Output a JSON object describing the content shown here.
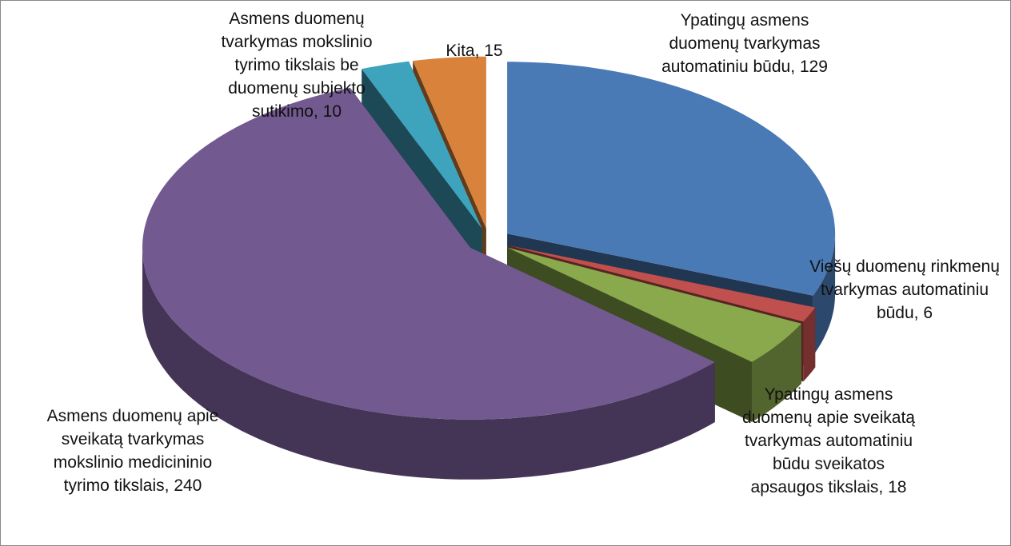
{
  "chart_data": {
    "type": "pie3d",
    "values": [
      129,
      6,
      18,
      240,
      10,
      15
    ],
    "value_labels": [
      "Ypatingų asmens duomenų tvarkymas automatiniu būdu, 129",
      "Viešų duomenų rinkmenų tvarkymas automatiniu būdu, 6",
      "Ypatingų asmens duomenų apie sveikatą tvarkymas automatiniu būdu sveikatos apsaugos tikslais, 18",
      "Asmens duomenų apie sveikatą tvarkymas mokslinio medicininio tyrimo tikslais, 240",
      "Asmens duomenų tvarkymas mokslinio tyrimo tikslais be duomenų subjekto sutikimo, 10",
      "Kita, 15"
    ],
    "colors": [
      "#4a7ab5",
      "#c0504d",
      "#8aa94c",
      "#72598f",
      "#3ea3bd",
      "#d9823c"
    ]
  }
}
